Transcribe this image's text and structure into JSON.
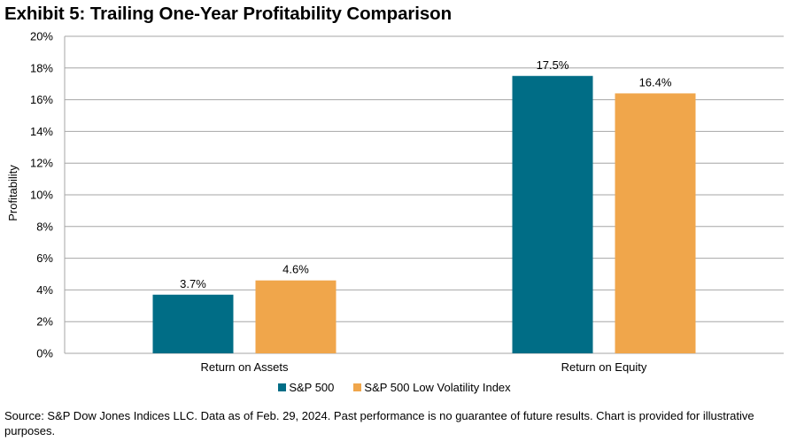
{
  "title": "Exhibit 5: Trailing One-Year Profitability Comparison",
  "source": "Source: S&P Dow Jones Indices LLC. Data as of Feb. 29, 2024. Past performance is no guarantee of future results. Chart is provided for illustrative purposes.",
  "chart_data": {
    "type": "bar",
    "title": "Exhibit 5: Trailing One-Year Profitability Comparison",
    "xlabel": "",
    "ylabel": "Profitability",
    "ylim": [
      0,
      20
    ],
    "yticks": [
      0,
      2,
      4,
      6,
      8,
      10,
      12,
      14,
      16,
      18,
      20
    ],
    "ytick_labels": [
      "0%",
      "2%",
      "4%",
      "6%",
      "8%",
      "10%",
      "12%",
      "14%",
      "16%",
      "18%",
      "20%"
    ],
    "grid": true,
    "legend_position": "bottom",
    "categories": [
      "Return on Assets",
      "Return on Equity"
    ],
    "series": [
      {
        "name": "S&P 500",
        "color": "#006d86",
        "values": [
          3.7,
          17.5
        ],
        "labels": [
          "3.7%",
          "17.5%"
        ]
      },
      {
        "name": "S&P 500 Low Volatility Index",
        "color": "#f0a64b",
        "values": [
          4.6,
          16.4
        ],
        "labels": [
          "4.6%",
          "16.4%"
        ]
      }
    ]
  }
}
